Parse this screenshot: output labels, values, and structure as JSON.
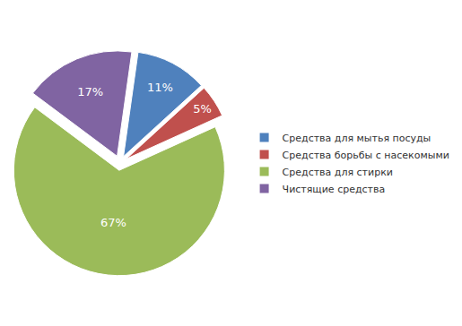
{
  "chart_data": {
    "type": "pie",
    "categories": [
      "Средства для мытья посуды",
      "Средства борьбы с насекомыми",
      "Средства для стирки",
      "Чистящие средства"
    ],
    "values": [
      11,
      5,
      67,
      17
    ],
    "value_labels": [
      "11%",
      "5%",
      "67%",
      "17%"
    ],
    "colors": [
      "#4f81bd",
      "#c0504d",
      "#9bbb59",
      "#8064a2"
    ],
    "data_labels": true,
    "legend": "right"
  }
}
